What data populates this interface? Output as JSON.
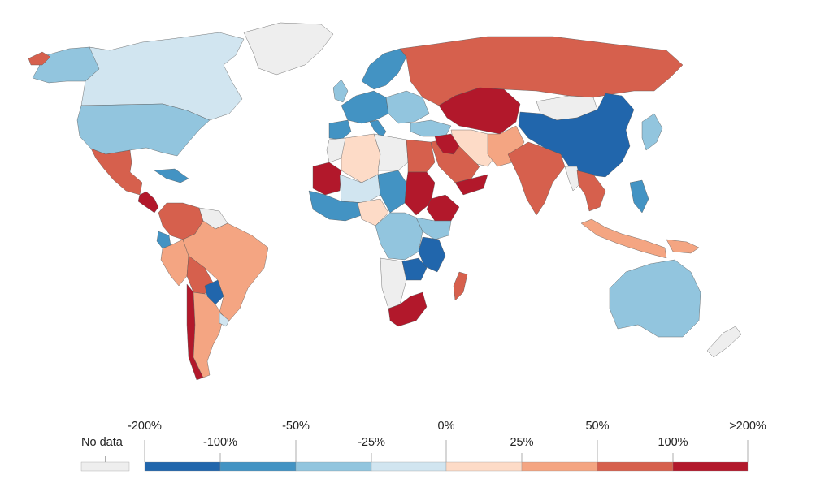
{
  "colors": {
    "nodata": "#eeeeee",
    "b1": "#2166ac",
    "b2": "#4393c3",
    "b3": "#92c5de",
    "b4": "#d1e5f0",
    "r1": "#fddbc7",
    "r2": "#f4a582",
    "r3": "#d6604d",
    "r4": "#b2182b"
  },
  "legend": {
    "nodata_label": "No data",
    "upper_labels": [
      "-200%",
      "-50%",
      "0%",
      "50%",
      ">200%"
    ],
    "lower_labels": [
      "-100%",
      "-25%",
      "25%",
      "100%"
    ],
    "bins": [
      "b1",
      "b2",
      "b3",
      "b4",
      "r1",
      "r2",
      "r3",
      "r4"
    ]
  },
  "regions": [
    {
      "name": "greenland",
      "bin": "nodata"
    },
    {
      "name": "alaska",
      "bin": "b3"
    },
    {
      "name": "canada",
      "bin": "b4"
    },
    {
      "name": "united-states",
      "bin": "b3"
    },
    {
      "name": "mexico",
      "bin": "r3"
    },
    {
      "name": "central-america",
      "bin": "r4"
    },
    {
      "name": "cuba",
      "bin": "b2"
    },
    {
      "name": "colombia-venezuela",
      "bin": "r3"
    },
    {
      "name": "guianas",
      "bin": "nodata"
    },
    {
      "name": "ecuador",
      "bin": "b2"
    },
    {
      "name": "peru",
      "bin": "r2"
    },
    {
      "name": "brazil",
      "bin": "r2"
    },
    {
      "name": "bolivia",
      "bin": "r3"
    },
    {
      "name": "paraguay",
      "bin": "b1"
    },
    {
      "name": "chile",
      "bin": "r4"
    },
    {
      "name": "argentina",
      "bin": "r2"
    },
    {
      "name": "uruguay",
      "bin": "b4"
    },
    {
      "name": "iceland",
      "bin": "r3"
    },
    {
      "name": "ireland-uk",
      "bin": "b3"
    },
    {
      "name": "scandinavia",
      "bin": "b2"
    },
    {
      "name": "western-europe",
      "bin": "b2"
    },
    {
      "name": "iberia",
      "bin": "b2"
    },
    {
      "name": "italy",
      "bin": "b2"
    },
    {
      "name": "eastern-europe",
      "bin": "b3"
    },
    {
      "name": "turkey",
      "bin": "b3"
    },
    {
      "name": "russia",
      "bin": "r3"
    },
    {
      "name": "kazakhstan-central-asia",
      "bin": "r4"
    },
    {
      "name": "mongolia",
      "bin": "nodata"
    },
    {
      "name": "china",
      "bin": "b1"
    },
    {
      "name": "japan-korea",
      "bin": "b3"
    },
    {
      "name": "iran",
      "bin": "r1"
    },
    {
      "name": "afghanistan-pakistan",
      "bin": "r2"
    },
    {
      "name": "india",
      "bin": "r3"
    },
    {
      "name": "southeast-asia",
      "bin": "r3"
    },
    {
      "name": "myanmar",
      "bin": "nodata"
    },
    {
      "name": "indonesia",
      "bin": "r2"
    },
    {
      "name": "philippines",
      "bin": "b2"
    },
    {
      "name": "papua",
      "bin": "r2"
    },
    {
      "name": "australia",
      "bin": "b3"
    },
    {
      "name": "new-zealand",
      "bin": "nodata"
    },
    {
      "name": "morocco",
      "bin": "nodata"
    },
    {
      "name": "algeria",
      "bin": "r1"
    },
    {
      "name": "libya",
      "bin": "nodata"
    },
    {
      "name": "egypt",
      "bin": "r3"
    },
    {
      "name": "mauritania",
      "bin": "r4"
    },
    {
      "name": "mali-niger",
      "bin": "b4"
    },
    {
      "name": "chad",
      "bin": "b2"
    },
    {
      "name": "sudan",
      "bin": "r4"
    },
    {
      "name": "ethiopia",
      "bin": "r4"
    },
    {
      "name": "arabia",
      "bin": "r3"
    },
    {
      "name": "yemen",
      "bin": "r4"
    },
    {
      "name": "iraq-syria",
      "bin": "r4"
    },
    {
      "name": "west-africa",
      "bin": "b2"
    },
    {
      "name": "nigeria",
      "bin": "r1"
    },
    {
      "name": "central-africa",
      "bin": "b3"
    },
    {
      "name": "east-africa",
      "bin": "b3"
    },
    {
      "name": "tanzania-mozambique",
      "bin": "b1"
    },
    {
      "name": "angola-namibia",
      "bin": "nodata"
    },
    {
      "name": "zambia-zimbabwe",
      "bin": "b1"
    },
    {
      "name": "south-africa",
      "bin": "r4"
    },
    {
      "name": "madagascar",
      "bin": "r3"
    }
  ]
}
